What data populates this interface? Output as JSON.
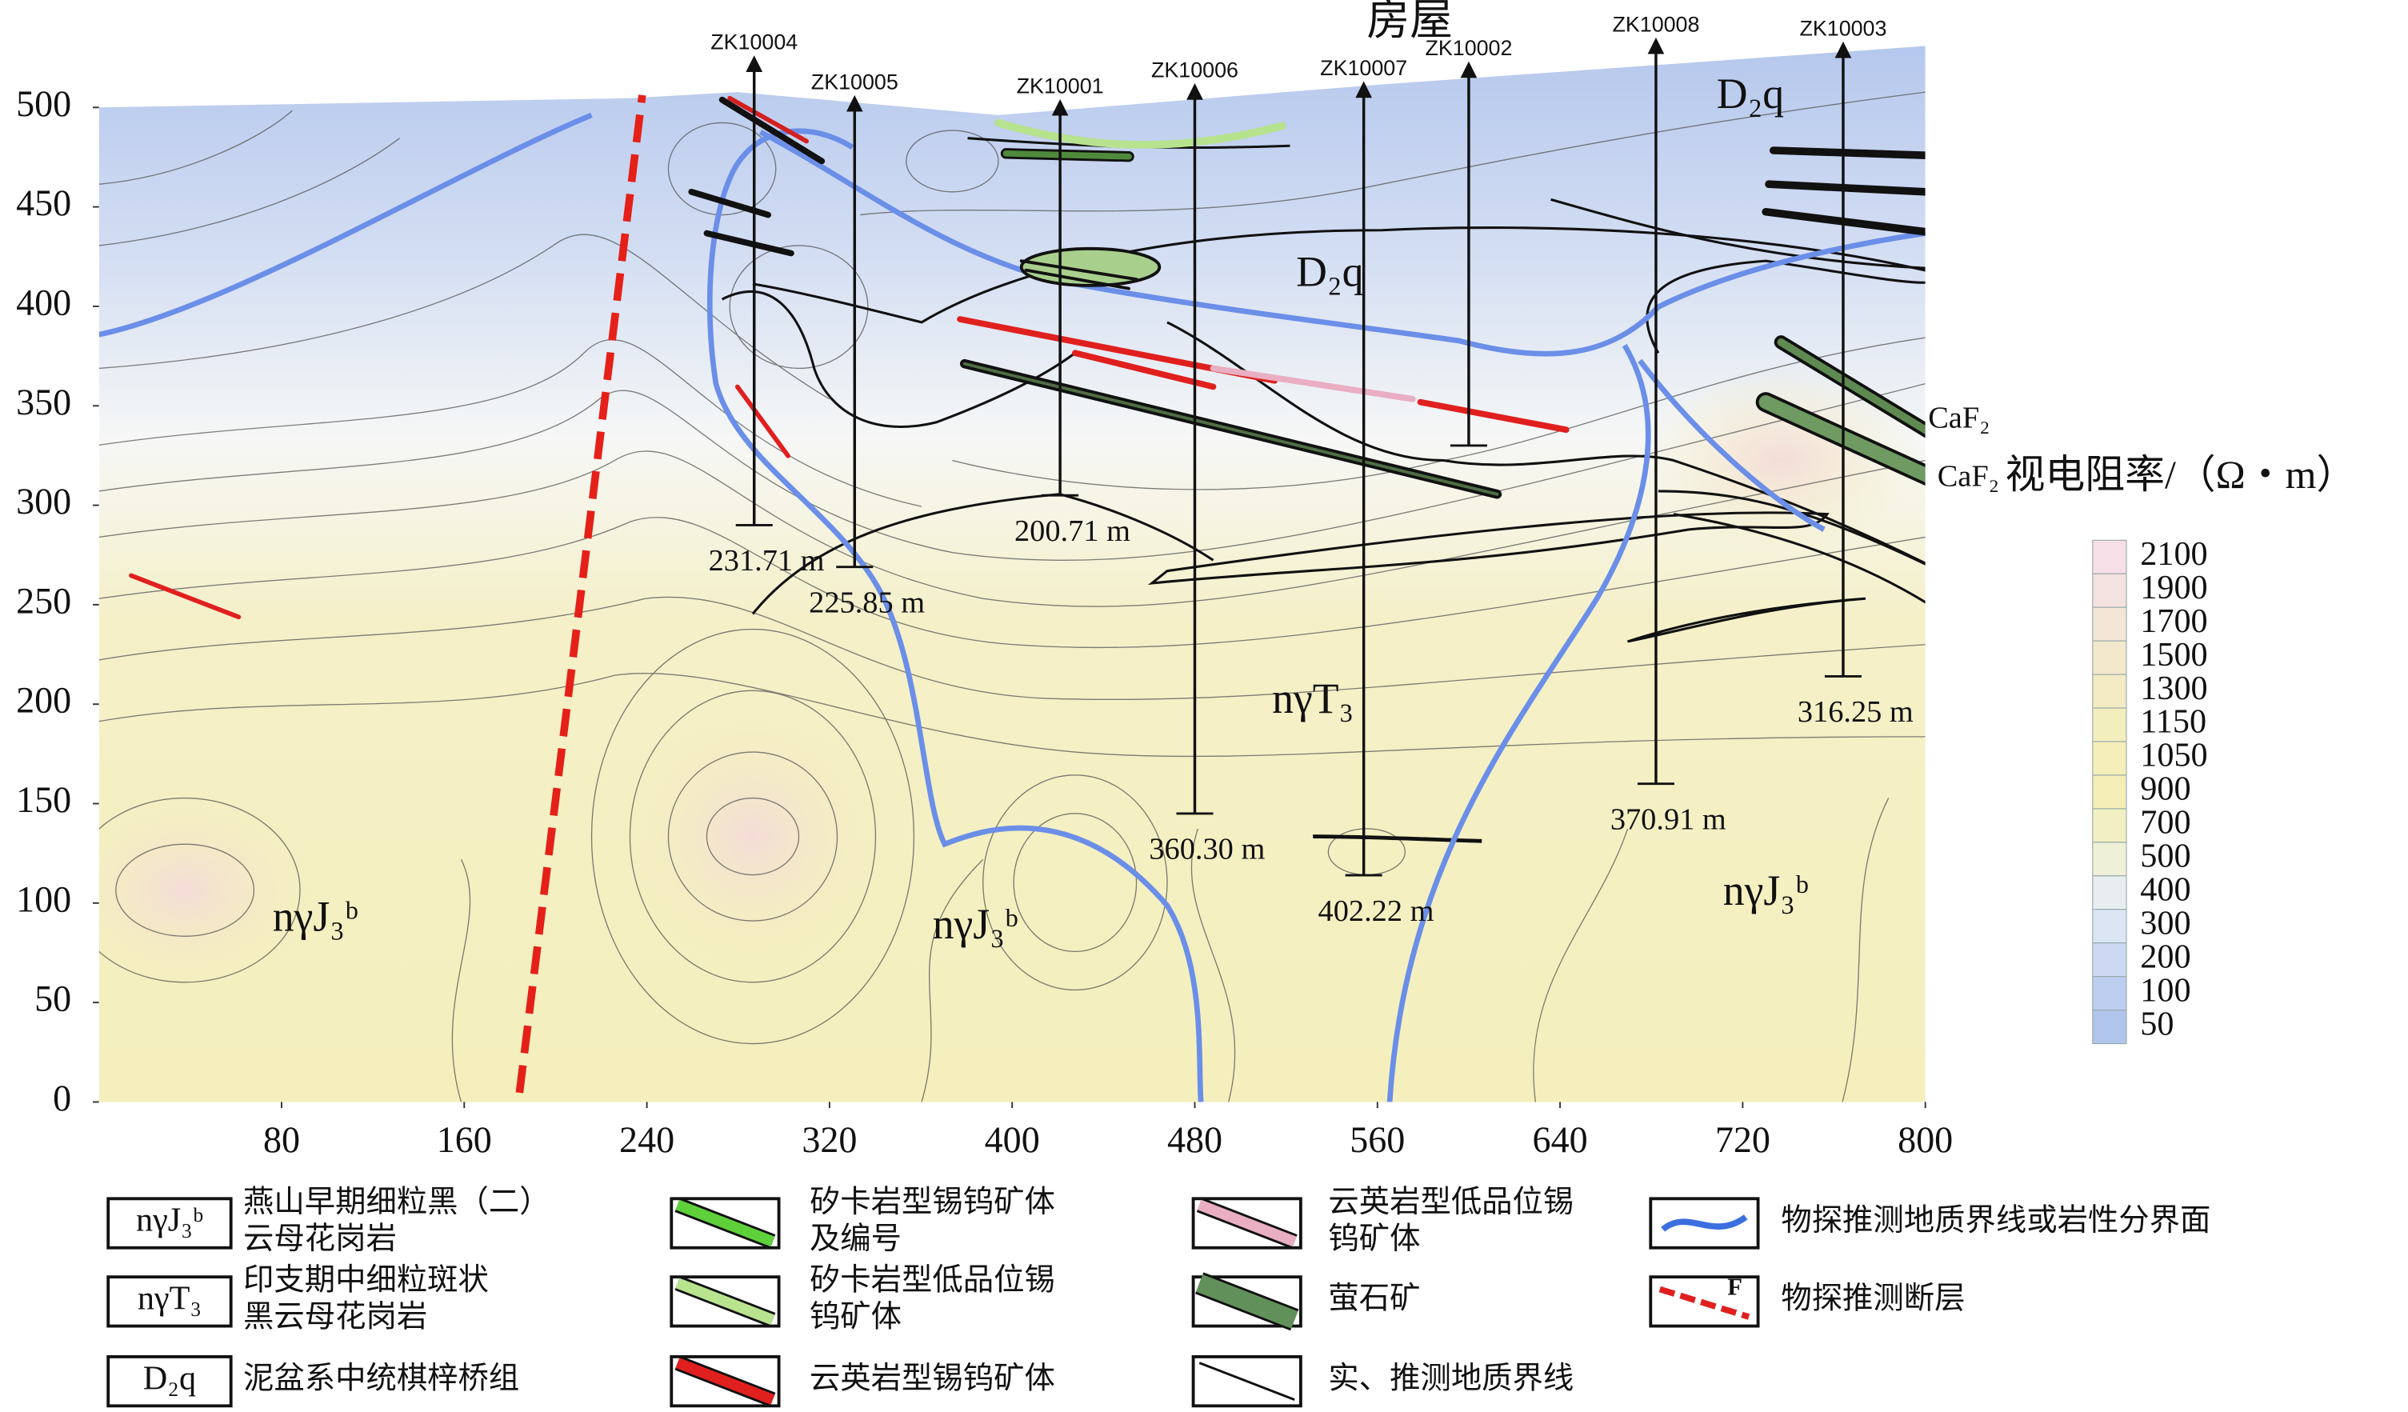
{
  "chart_data": {
    "type": "section",
    "xlim": [
      0,
      800
    ],
    "ylim": [
      0,
      500
    ],
    "xticks": [
      80,
      160,
      240,
      320,
      400,
      480,
      560,
      640,
      720,
      800
    ],
    "yticks": [
      0,
      50,
      100,
      150,
      200,
      250,
      300,
      350,
      400,
      450,
      500
    ],
    "boreholes": [
      {
        "name": "ZK10004",
        "x": 287,
        "top": 522,
        "bottom": 290,
        "depth_label": "231.71 m"
      },
      {
        "name": "ZK10005",
        "x": 331,
        "top": 502,
        "bottom": 269,
        "depth_label": "225.85 m"
      },
      {
        "name": "ZK10001",
        "x": 421,
        "top": 500,
        "bottom": 305,
        "depth_label": "200.71 m"
      },
      {
        "name": "ZK10006",
        "x": 480,
        "top": 508,
        "bottom": 145,
        "depth_label": "360.30 m"
      },
      {
        "name": "ZK10007",
        "x": 554,
        "top": 509,
        "bottom": 114,
        "depth_label": "402.22 m"
      },
      {
        "name": "ZK10002",
        "x": 600,
        "top": 519,
        "bottom": 330,
        "depth_label": null
      },
      {
        "name": "ZK10008",
        "x": 682,
        "top": 531,
        "bottom": 160,
        "depth_label": "370.91 m"
      },
      {
        "name": "ZK10003",
        "x": 764,
        "top": 529,
        "bottom": 214,
        "depth_label": "316.25 m"
      }
    ],
    "annotations": [
      "房屋",
      "D₂q",
      "D₂q",
      "nγT₃",
      "nγJ₃ᵇ",
      "nγJ₃ᵇ",
      "nγJ₃ᵇ",
      "CaF₂",
      "CaF₂"
    ],
    "colorbar": {
      "title": "视电阻率/（Ω・m）",
      "ticks": [
        2100,
        1900,
        1700,
        1500,
        1300,
        1150,
        1050,
        900,
        700,
        500,
        400,
        300,
        200,
        100,
        50
      ],
      "colors": [
        "#f6dfe6",
        "#f3e2df",
        "#f3e6d6",
        "#f2e8cc",
        "#f2ebc4",
        "#f3eebe",
        "#f4efb9",
        "#f4efb6",
        "#f2f0c2",
        "#eef0d8",
        "#e8eef0",
        "#dbe5f4",
        "#cdd9f2",
        "#bdcdef",
        "#b0c4ec"
      ]
    },
    "legend": [
      {
        "symbol": "nγJ₃ᵇ",
        "lines": [
          "燕山早期细粒黑（二）",
          "云母花岗岩"
        ]
      },
      {
        "symbol": "nγT₃",
        "lines": [
          "印支期中细粒斑状",
          "黑云母花岗岩"
        ]
      },
      {
        "symbol": "D₂q",
        "lines": [
          "泥盆系中统棋梓桥组"
        ]
      },
      {
        "lines": [
          "矽卡岩型锡钨矿体",
          "及编号"
        ]
      },
      {
        "lines": [
          "矽卡岩型低品位锡",
          "钨矿体"
        ]
      },
      {
        "lines": [
          "云英岩型锡钨矿体"
        ]
      },
      {
        "lines": [
          "云英岩型低品位锡",
          "钨矿体"
        ]
      },
      {
        "lines": [
          "萤石矿"
        ]
      },
      {
        "lines": [
          "实、推测地质界线"
        ]
      },
      {
        "lines": [
          "物探推测地质界线或岩性分界面"
        ]
      },
      {
        "lines": [
          "物探推测断层"
        ],
        "tag": "F"
      }
    ]
  }
}
